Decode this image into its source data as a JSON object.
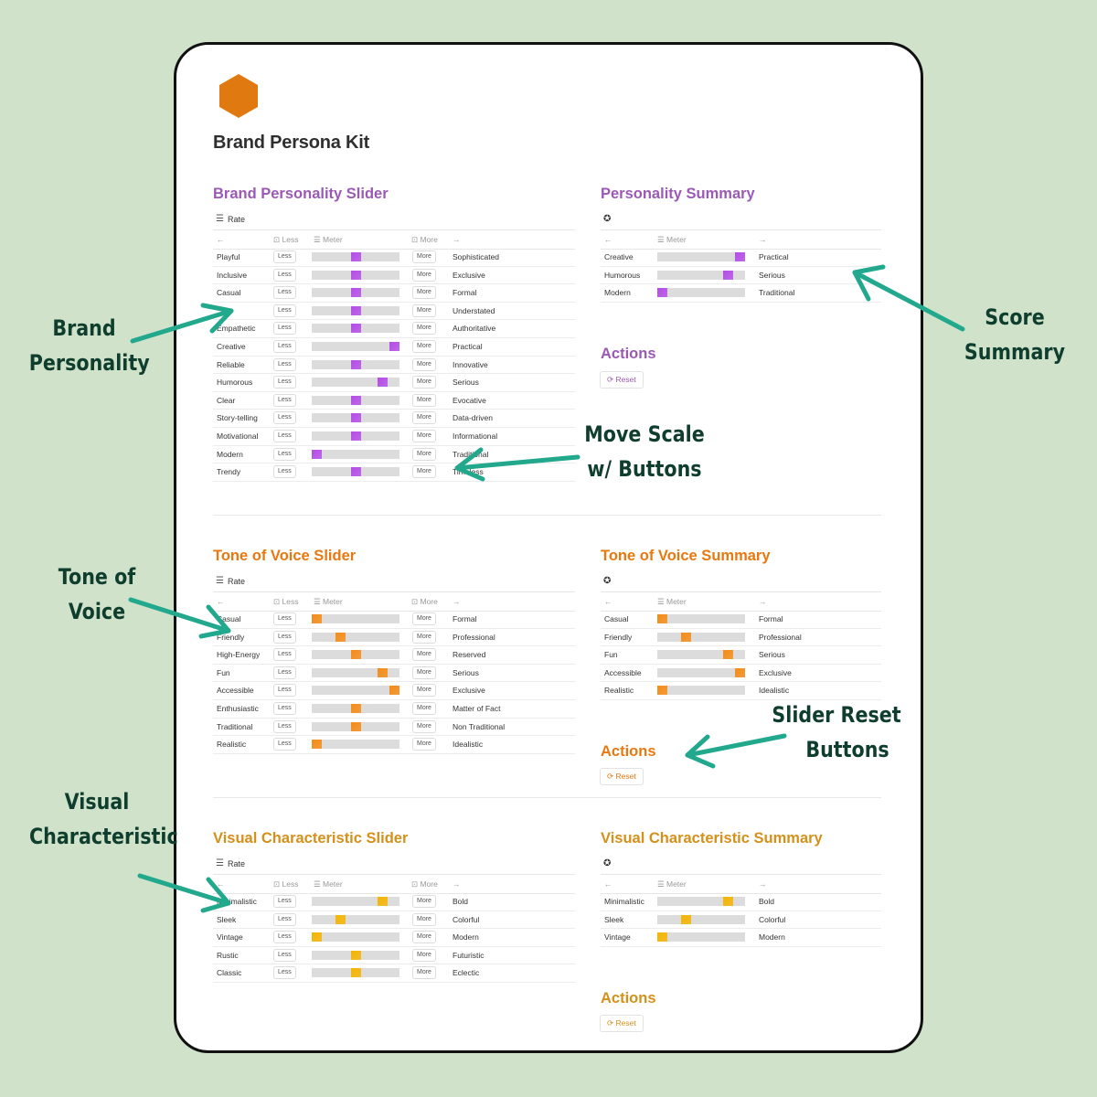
{
  "colors": {
    "background": "#d0e2ca",
    "purple": "#9b59b6",
    "purple_knob": "#b54be8",
    "orange": "#e8780f",
    "orange_knob": "#f58b16",
    "gold": "#d4901a",
    "gold_knob": "#f5b400",
    "arrow": "#22a88c",
    "logo": "#e07a10"
  },
  "page": {
    "title": "Brand Persona Kit",
    "logo_icon": "hexagon-icon"
  },
  "common": {
    "rate_label": "Rate",
    "less_header": "Less",
    "meter_header": "Meter",
    "more_header": "More",
    "less_button": "Less",
    "more_button": "More",
    "reset_label": "Reset",
    "actions_title": "Actions"
  },
  "sections": [
    {
      "key": "personality",
      "slider_title": "Brand Personality Slider",
      "summary_title": "Personality Summary",
      "rows": [
        {
          "left": "Playful",
          "right": "Sophisticated",
          "level": 0.5
        },
        {
          "left": "Inclusive",
          "right": "Exclusive",
          "level": 0.5
        },
        {
          "left": "Casual",
          "right": "Formal",
          "level": 0.5
        },
        {
          "left": "",
          "right": "Understated",
          "level": 0.5
        },
        {
          "left": "Empathetic",
          "right": "Authoritative",
          "level": 0.5
        },
        {
          "left": "Creative",
          "right": "Practical",
          "level": 1.0
        },
        {
          "left": "Reliable",
          "right": "Innovative",
          "level": 0.5
        },
        {
          "left": "Humorous",
          "right": "Serious",
          "level": 0.85
        },
        {
          "left": "Clear",
          "right": "Evocative",
          "level": 0.5
        },
        {
          "left": "Story-telling",
          "right": "Data-driven",
          "level": 0.5
        },
        {
          "left": "Motivational",
          "right": "Informational",
          "level": 0.5
        },
        {
          "left": "Modern",
          "right": "Traditional",
          "level": 0.0
        },
        {
          "left": "Trendy",
          "right": "Timeless",
          "level": 0.5
        }
      ],
      "summary": [
        {
          "left": "Creative",
          "right": "Practical",
          "level": 1.0
        },
        {
          "left": "Humorous",
          "right": "Serious",
          "level": 0.85
        },
        {
          "left": "Modern",
          "right": "Traditional",
          "level": 0.0
        }
      ]
    },
    {
      "key": "tone",
      "slider_title": "Tone of Voice Slider",
      "summary_title": "Tone of Voice Summary",
      "rows": [
        {
          "left": "Casual",
          "right": "Formal",
          "level": 0.0
        },
        {
          "left": "Friendly",
          "right": "Professional",
          "level": 0.3
        },
        {
          "left": "High-Energy",
          "right": "Reserved",
          "level": 0.5
        },
        {
          "left": "Fun",
          "right": "Serious",
          "level": 0.85
        },
        {
          "left": "Accessible",
          "right": "Exclusive",
          "level": 1.0
        },
        {
          "left": "Enthusiastic",
          "right": "Matter of Fact",
          "level": 0.5
        },
        {
          "left": "Traditional",
          "right": "Non Traditional",
          "level": 0.5
        },
        {
          "left": "Realistic",
          "right": "Idealistic",
          "level": 0.0
        }
      ],
      "summary": [
        {
          "left": "Casual",
          "right": "Formal",
          "level": 0.0
        },
        {
          "left": "Friendly",
          "right": "Professional",
          "level": 0.3
        },
        {
          "left": "Fun",
          "right": "Serious",
          "level": 0.85
        },
        {
          "left": "Accessible",
          "right": "Exclusive",
          "level": 1.0
        },
        {
          "left": "Realistic",
          "right": "Idealistic",
          "level": 0.0
        }
      ]
    },
    {
      "key": "visual",
      "slider_title": "Visual Characteristic Slider",
      "summary_title": "Visual Characteristic Summary",
      "rows": [
        {
          "left": "Minimalistic",
          "right": "Bold",
          "level": 0.85
        },
        {
          "left": "Sleek",
          "right": "Colorful",
          "level": 0.3
        },
        {
          "left": "Vintage",
          "right": "Modern",
          "level": 0.0
        },
        {
          "left": "Rustic",
          "right": "Futuristic",
          "level": 0.5
        },
        {
          "left": "Classic",
          "right": "Eclectic",
          "level": 0.5
        }
      ],
      "summary": [
        {
          "left": "Minimalistic",
          "right": "Bold",
          "level": 0.85
        },
        {
          "left": "Sleek",
          "right": "Colorful",
          "level": 0.3
        },
        {
          "left": "Vintage",
          "right": "Modern",
          "level": 0.0
        }
      ]
    }
  ],
  "annotations": {
    "brand_personality": [
      "Brand",
      "Personality"
    ],
    "score_summary": [
      "Score",
      "Summary"
    ],
    "move_scale": [
      "Move Scale",
      "w/ Buttons"
    ],
    "tone_of_voice": [
      "Tone of",
      "Voice"
    ],
    "slider_reset": [
      "Slider Reset",
      "Buttons"
    ],
    "visual_characteristic": [
      "Visual",
      "Characteristic"
    ]
  }
}
